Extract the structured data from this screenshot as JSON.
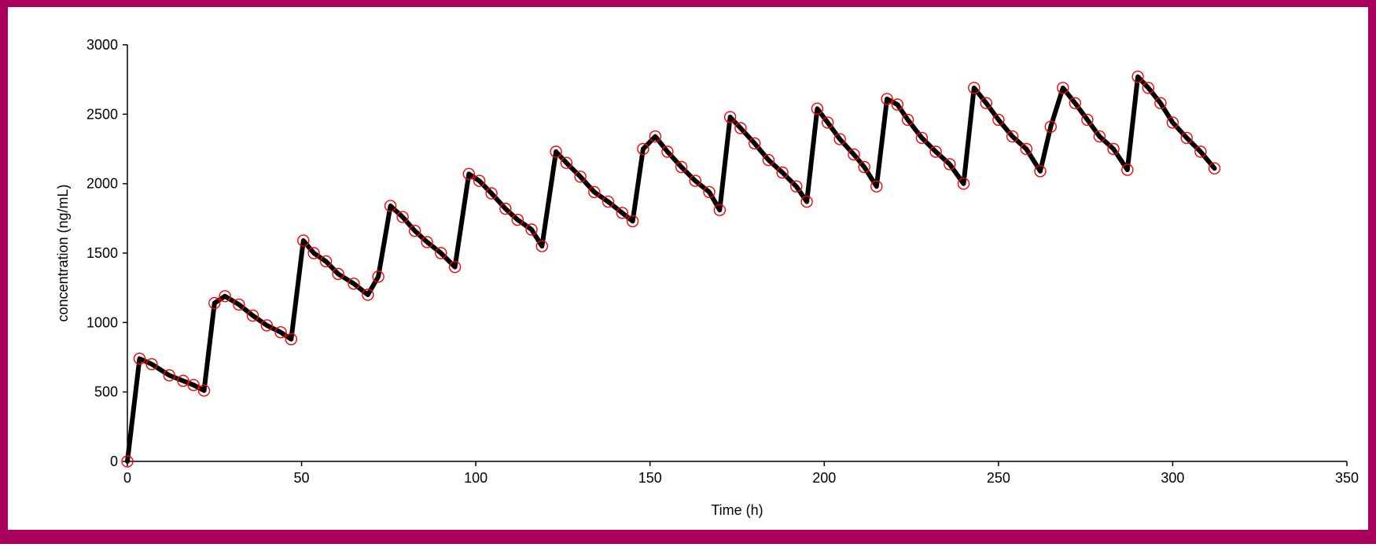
{
  "chart_data": {
    "type": "line",
    "title": "",
    "xlabel": "Time (h)",
    "ylabel": "concentration (ng/mL)",
    "xlim": [
      0,
      350
    ],
    "ylim": [
      0,
      3000
    ],
    "x_ticks": [
      0,
      50,
      100,
      150,
      200,
      250,
      300,
      350
    ],
    "y_ticks": [
      0,
      500,
      1000,
      1500,
      2000,
      2500,
      3000
    ],
    "grid": false,
    "colors": {
      "line": "#000000",
      "markers": "#ff0000",
      "border": "#a8005c"
    },
    "series": [
      {
        "marker": "open-circle",
        "x": [
          0,
          3.5,
          7,
          12,
          16,
          19,
          22,
          25,
          28,
          32,
          36,
          40,
          44,
          47,
          50.5,
          53.5,
          57,
          60.5,
          65,
          69,
          72,
          75.5,
          79,
          82.5,
          86,
          90,
          94,
          98,
          101,
          104.5,
          108.5,
          112,
          116,
          119,
          123,
          126,
          130,
          134,
          138,
          142,
          145,
          148,
          151.5,
          155,
          159,
          163,
          167,
          170,
          173,
          176,
          180,
          184,
          188,
          192,
          195,
          198,
          201,
          204.5,
          208.5,
          211.5,
          215,
          218,
          221,
          224,
          228,
          232,
          236,
          240,
          243,
          246.5,
          250,
          254,
          258,
          262,
          265,
          268.5,
          272,
          275.5,
          279,
          283,
          287,
          290,
          293,
          296.5,
          300,
          304,
          308,
          312
        ],
        "y": [
          0,
          740,
          700,
          620,
          580,
          550,
          510,
          1140,
          1190,
          1130,
          1050,
          980,
          930,
          880,
          1590,
          1500,
          1440,
          1350,
          1280,
          1200,
          1330,
          1840,
          1760,
          1660,
          1580,
          1500,
          1400,
          2070,
          2020,
          1930,
          1820,
          1740,
          1670,
          1550,
          2230,
          2150,
          2050,
          1940,
          1870,
          1790,
          1730,
          2250,
          2340,
          2230,
          2120,
          2020,
          1940,
          1810,
          2480,
          2400,
          2290,
          2170,
          2080,
          1980,
          1870,
          2540,
          2440,
          2320,
          2210,
          2120,
          1980,
          2610,
          2570,
          2460,
          2330,
          2230,
          2140,
          2000,
          2690,
          2580,
          2460,
          2340,
          2250,
          2090,
          2410,
          2690,
          2580,
          2460,
          2340,
          2250,
          2100,
          2770,
          2690,
          2580,
          2440,
          2330,
          2230,
          2110
        ]
      }
    ]
  }
}
